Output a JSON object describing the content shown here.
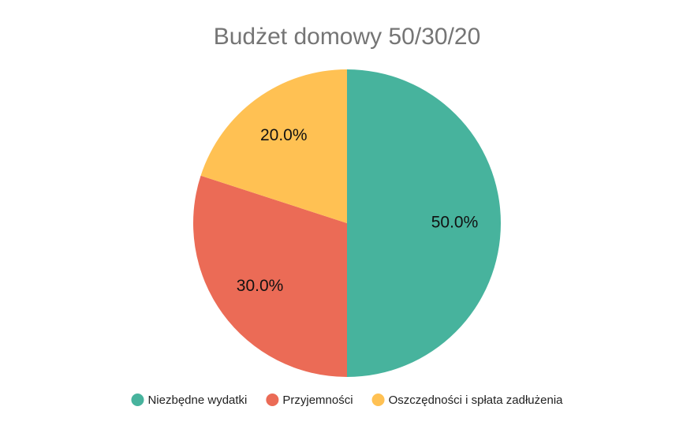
{
  "chart_data": {
    "type": "pie",
    "title": "Budżet domowy 50/30/20",
    "categories": [
      "Niezbędne wydatki",
      "Przyjemności",
      "Oszczędności i spłata zadłużenia"
    ],
    "values": [
      50,
      30,
      20
    ],
    "value_labels": [
      "50.0%",
      "30.0%",
      "20.0%"
    ],
    "colors": [
      "#47b39d",
      "#eb6b56",
      "#ffc153"
    ],
    "legend": "bottom"
  }
}
